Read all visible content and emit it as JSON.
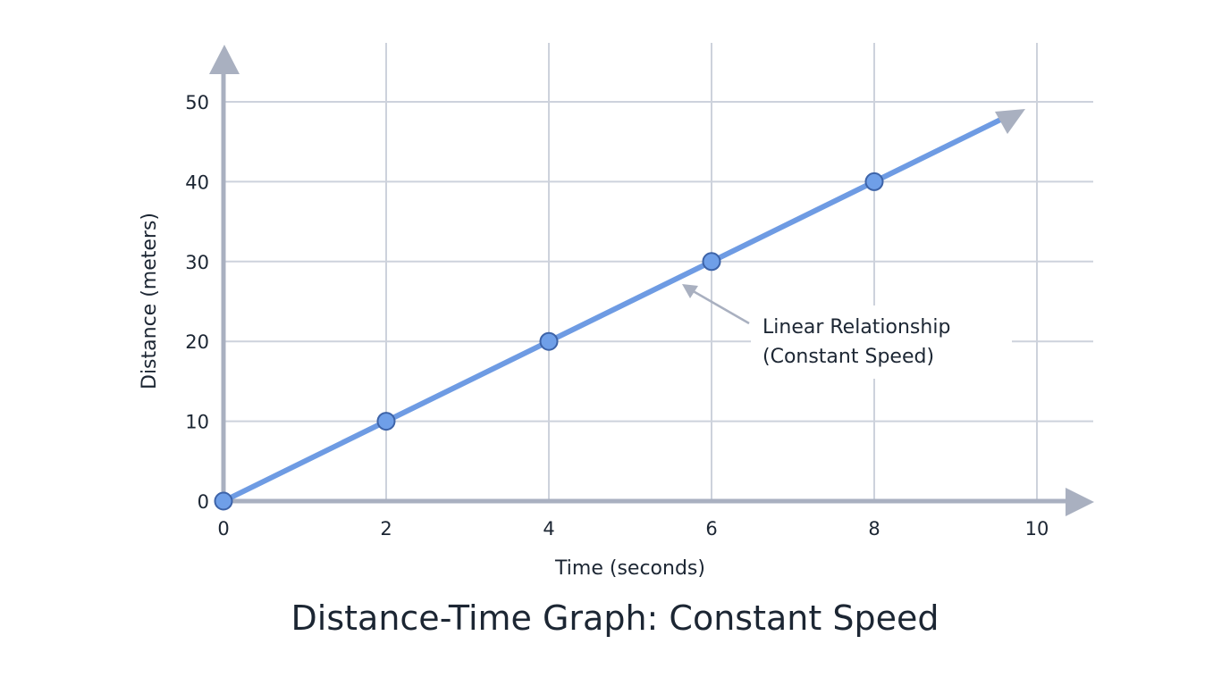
{
  "chart_data": {
    "type": "line",
    "title": "Distance-Time Graph: Constant Speed",
    "xlabel": "Time (seconds)",
    "ylabel": "Distance (meters)",
    "xlim": [
      0,
      10
    ],
    "ylim": [
      0,
      50
    ],
    "x_ticks": [
      0,
      2,
      4,
      6,
      8,
      10
    ],
    "y_ticks": [
      0,
      10,
      20,
      30,
      40,
      50
    ],
    "grid": true,
    "legend": null,
    "series": [
      {
        "name": "Distance",
        "x": [
          0,
          2,
          4,
          6,
          8
        ],
        "y": [
          0,
          10,
          20,
          30,
          40
        ],
        "line_extends_with_arrow": true,
        "color": "#6e9be3",
        "marker_fill": "#6f9fe8",
        "marker_stroke": "#3d63a8"
      }
    ],
    "annotations": [
      {
        "text_line1": "Linear Relationship",
        "text_line2": "(Constant Speed)",
        "points_to": [
          5.7,
          27
        ]
      }
    ]
  },
  "colors": {
    "axis": "#a9b0c0",
    "grid": "#cdd2dc",
    "line": "#6e9be3",
    "marker_fill": "#6f9fe8",
    "marker_stroke": "#3d63a8",
    "text": "#1c2633"
  }
}
